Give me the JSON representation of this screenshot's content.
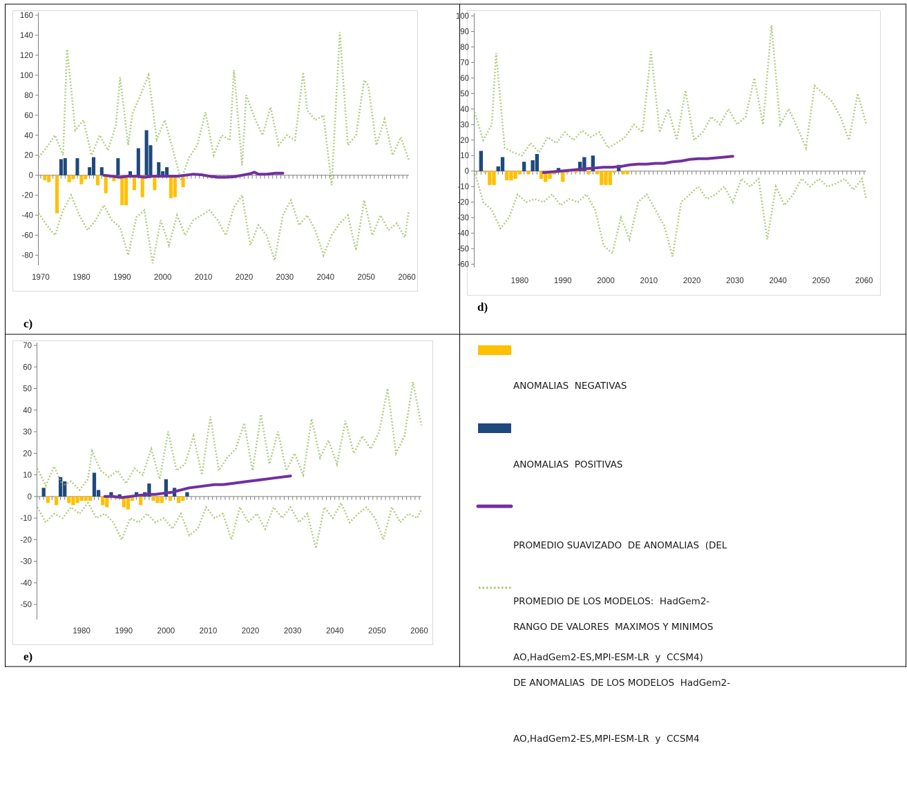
{
  "colors": {
    "negative": "#ffc000",
    "positive": "#1f497d",
    "smooth": "#7030a0",
    "range": "#9bbb59",
    "border": "#000000"
  },
  "legend": {
    "negative": [
      "ANOMALIAS  NEGATIVAS"
    ],
    "positive": [
      "ANOMALIAS  POSITIVAS"
    ],
    "smooth": [
      "PROMEDIO SUAVIZADO  DE ANOMALIAS  (DEL",
      "PROMEDIO DE LOS MODELOS:  HadGem2-",
      "AO,HadGem2-ES,MPI-ESM-LR  y  CCSM4)"
    ],
    "range": [
      "RANGO DE VALORES  MAXIMOS Y MINIMOS",
      "DE ANOMALIAS  DE LOS MODELOS  HadGem2-",
      "AO,HadGem2-ES,MPI-ESM-LR  y  CCSM4"
    ]
  },
  "chart_data": [
    {
      "id": "c",
      "panel_label": "c)",
      "type": "bar",
      "x_ticks": [
        "1970",
        "1980",
        "1990",
        "2000",
        "2010",
        "2020",
        "2030",
        "2040",
        "2050",
        "2060"
      ],
      "x_tick_values": [
        1970,
        1980,
        1990,
        2000,
        2010,
        2020,
        2030,
        2040,
        2050,
        2060
      ],
      "xlim": [
        1970,
        2061
      ],
      "y_ticks": [
        "-80",
        "-60",
        "-40",
        "-20",
        "0",
        "20",
        "40",
        "60",
        "80",
        "100",
        "120",
        "140",
        "160"
      ],
      "ylim": [
        -90,
        160
      ],
      "bars": {
        "years": [
          1971,
          1972,
          1973,
          1974,
          1975,
          1976,
          1977,
          1978,
          1979,
          1980,
          1981,
          1982,
          1983,
          1984,
          1985,
          1986,
          1987,
          1988,
          1989,
          1990,
          1991,
          1992,
          1993,
          1994,
          1995,
          1996,
          1997,
          1998,
          1999,
          2000,
          2001,
          2002,
          2003,
          2004,
          2005
        ],
        "values": [
          -5,
          -7,
          0,
          -38,
          16,
          17,
          -7,
          -4,
          17,
          -9,
          -4,
          8,
          18,
          -10,
          8,
          -18,
          0,
          -6,
          17,
          -30,
          -30,
          4,
          -15,
          27,
          -22,
          45,
          30,
          -15,
          13,
          4,
          8,
          -23,
          -22,
          -1,
          -12
        ]
      },
      "smooth": {
        "years": [
          1986,
          1988,
          1990,
          1992,
          1994,
          1996,
          1998,
          2000,
          2002,
          2004,
          2006,
          2008,
          2010,
          2012,
          2014,
          2016,
          2018,
          2020,
          2022,
          2023,
          2024,
          2026,
          2028,
          2030
        ],
        "values": [
          0,
          -1,
          -2,
          -1,
          -1,
          -2,
          -1,
          -1,
          -1,
          -1,
          0,
          1,
          0.5,
          -1,
          -2,
          -2,
          -1.5,
          0,
          1.5,
          3,
          1,
          1,
          2,
          2
        ]
      },
      "range_max": {
        "years": [
          1970,
          1972,
          1974,
          1976,
          1977,
          1979,
          1981,
          1983,
          1985,
          1987,
          1989,
          1990,
          1992,
          1993,
          1995,
          1997,
          1999,
          2001,
          2003,
          2005,
          2007,
          2009,
          2011,
          2013,
          2015,
          2017,
          2018,
          2020,
          2021,
          2023,
          2025,
          2027,
          2029,
          2031,
          2033,
          2035,
          2036,
          2038,
          2040,
          2042,
          2044,
          2046,
          2048,
          2050,
          2051,
          2053,
          2055,
          2057,
          2059,
          2061
        ],
        "values": [
          18,
          28,
          40,
          20,
          126,
          45,
          55,
          20,
          40,
          25,
          50,
          98,
          30,
          61,
          80,
          100,
          36,
          55,
          25,
          -5,
          18,
          30,
          63,
          20,
          40,
          35,
          105,
          10,
          80,
          58,
          40,
          68,
          30,
          40,
          35,
          103,
          65,
          55,
          60,
          -10,
          143,
          30,
          40,
          95,
          90,
          30,
          56,
          20,
          38,
          15
        ]
      },
      "range_min": {
        "years": [
          1970,
          1972,
          1974,
          1976,
          1978,
          1980,
          1982,
          1984,
          1986,
          1988,
          1990,
          1992,
          1994,
          1996,
          1998,
          2000,
          2002,
          2004,
          2006,
          2008,
          2010,
          2012,
          2014,
          2016,
          2018,
          2020,
          2022,
          2024,
          2026,
          2028,
          2030,
          2032,
          2034,
          2036,
          2038,
          2040,
          2042,
          2044,
          2046,
          2048,
          2050,
          2052,
          2054,
          2056,
          2058,
          2060,
          2061
        ],
        "values": [
          -38,
          -50,
          -60,
          -35,
          -20,
          -40,
          -55,
          -45,
          -30,
          -45,
          -52,
          -80,
          -42,
          -35,
          -88,
          -45,
          -70,
          -40,
          -60,
          -45,
          -40,
          -35,
          -45,
          -60,
          -32,
          -20,
          -70,
          -50,
          -60,
          -85,
          -40,
          -25,
          -50,
          -40,
          -55,
          -80,
          -60,
          -48,
          -40,
          -75,
          -25,
          -60,
          -40,
          -55,
          -48,
          -62,
          -35
        ]
      }
    },
    {
      "id": "d",
      "panel_label": "d)",
      "type": "bar",
      "x_ticks": [
        "1980",
        "1990",
        "2000",
        "2010",
        "2020",
        "2030",
        "2040",
        "2050",
        "2060"
      ],
      "x_tick_values": [
        1980,
        1990,
        2000,
        2010,
        2020,
        2030,
        2040,
        2050,
        2060
      ],
      "xlim": [
        1970,
        2061
      ],
      "y_ticks": [
        "-60",
        "-50",
        "-40",
        "-30",
        "-20",
        "-10",
        "0",
        "10",
        "20",
        "30",
        "40",
        "50",
        "60",
        "70",
        "80",
        "90",
        "100"
      ],
      "ylim": [
        -62,
        100
      ],
      "bars": {
        "years": [
          1971,
          1972,
          1973,
          1974,
          1975,
          1976,
          1977,
          1978,
          1979,
          1980,
          1981,
          1982,
          1983,
          1984,
          1985,
          1986,
          1987,
          1988,
          1989,
          1990,
          1991,
          1992,
          1993,
          1994,
          1995,
          1996,
          1997,
          1998,
          1999,
          2000,
          2001,
          2002,
          2003,
          2004,
          2005
        ],
        "values": [
          13,
          -1,
          -9,
          -9,
          3,
          9,
          -6,
          -6,
          -5,
          -2,
          6,
          -2,
          7,
          11,
          -5,
          -7,
          -5,
          -2,
          2,
          -7,
          -1,
          0,
          -1,
          6,
          9,
          -2,
          10,
          -2,
          -9,
          -9,
          -9,
          -1,
          4,
          -2,
          -2
        ]
      },
      "smooth": {
        "years": [
          1986,
          1988,
          1990,
          1992,
          1994,
          1996,
          1998,
          2000,
          2002,
          2004,
          2006,
          2008,
          2010,
          2012,
          2014,
          2016,
          2018,
          2020,
          2022,
          2024,
          2026,
          2028,
          2030
        ],
        "values": [
          -1,
          -0.5,
          0,
          0.5,
          1,
          1.5,
          2,
          2.5,
          2.5,
          3,
          4,
          4.5,
          4.5,
          5,
          5,
          6,
          6.5,
          7.5,
          8,
          8,
          8.5,
          9,
          9.5
        ]
      },
      "range_max": {
        "years": [
          1970,
          1972,
          1974,
          1975,
          1977,
          1979,
          1981,
          1983,
          1985,
          1987,
          1989,
          1991,
          1993,
          1995,
          1997,
          1999,
          2001,
          2003,
          2005,
          2007,
          2009,
          2011,
          2013,
          2015,
          2017,
          2019,
          2021,
          2023,
          2025,
          2027,
          2029,
          2031,
          2033,
          2035,
          2037,
          2039,
          2041,
          2043,
          2045,
          2047,
          2049,
          2051,
          2053,
          2055,
          2057,
          2059,
          2061
        ],
        "values": [
          38,
          20,
          30,
          76,
          15,
          12,
          10,
          18,
          12,
          22,
          18,
          25,
          20,
          26,
          22,
          25,
          15,
          18,
          22,
          30,
          25,
          77,
          25,
          40,
          20,
          52,
          20,
          25,
          35,
          30,
          40,
          30,
          35,
          60,
          30,
          94,
          30,
          40,
          28,
          15,
          55,
          50,
          45,
          35,
          20,
          50,
          30
        ]
      },
      "range_min": {
        "years": [
          1970,
          1972,
          1974,
          1976,
          1978,
          1980,
          1982,
          1984,
          1986,
          1988,
          1990,
          1992,
          1994,
          1996,
          1998,
          2000,
          2002,
          2004,
          2006,
          2008,
          2010,
          2012,
          2014,
          2016,
          2018,
          2020,
          2022,
          2024,
          2026,
          2028,
          2030,
          2032,
          2034,
          2036,
          2038,
          2040,
          2042,
          2044,
          2046,
          2048,
          2050,
          2052,
          2054,
          2056,
          2058,
          2060,
          2061
        ],
        "values": [
          0,
          -20,
          -25,
          -37,
          -30,
          -15,
          -20,
          -18,
          -20,
          -15,
          -22,
          -18,
          -20,
          -15,
          -25,
          -48,
          -53,
          -30,
          -44,
          -20,
          -15,
          -25,
          -35,
          -55,
          -20,
          -15,
          -10,
          -18,
          -15,
          -10,
          -20,
          -5,
          -10,
          -5,
          -44,
          -10,
          -22,
          -15,
          -5,
          -10,
          -5,
          -10,
          -8,
          -5,
          -12,
          -5,
          -18
        ]
      }
    },
    {
      "id": "e",
      "panel_label": "e)",
      "type": "bar",
      "x_ticks": [
        "1980",
        "1990",
        "2000",
        "2010",
        "2020",
        "2030",
        "2040",
        "2050",
        "2060"
      ],
      "x_tick_values": [
        1980,
        1990,
        2000,
        2010,
        2020,
        2030,
        2040,
        2050,
        2060
      ],
      "xlim": [
        1970,
        2061
      ],
      "y_ticks": [
        "-50",
        "-40",
        "-30",
        "-20",
        "-10",
        "0",
        "10",
        "20",
        "30",
        "40",
        "50",
        "60",
        "70"
      ],
      "ylim": [
        -57,
        70
      ],
      "bars": {
        "years": [
          1971,
          1972,
          1973,
          1974,
          1975,
          1976,
          1977,
          1978,
          1979,
          1980,
          1981,
          1982,
          1983,
          1984,
          1985,
          1986,
          1987,
          1988,
          1989,
          1990,
          1991,
          1992,
          1993,
          1994,
          1995,
          1996,
          1997,
          1998,
          1999,
          2000,
          2001,
          2002,
          2003,
          2004,
          2005
        ],
        "values": [
          4,
          -3,
          0,
          -4,
          9,
          7,
          -3,
          -4,
          -3,
          -2,
          -2,
          -2,
          11,
          3,
          -4,
          -5,
          2,
          -1,
          1,
          -5,
          -6,
          -2,
          2,
          -4,
          2,
          6,
          -2,
          -3,
          -3,
          8,
          -2,
          4,
          -3,
          -2,
          2
        ]
      },
      "smooth": {
        "years": [
          1986,
          1988,
          1990,
          1992,
          1994,
          1996,
          1998,
          2000,
          2002,
          2004,
          2006,
          2008,
          2010,
          2012,
          2014,
          2016,
          2018,
          2020,
          2022,
          2024,
          2026,
          2028,
          2030
        ],
        "values": [
          0,
          0,
          -0.5,
          0,
          0.5,
          1,
          1,
          1.5,
          2,
          3,
          4,
          4.5,
          5,
          5.5,
          5.5,
          6,
          6.5,
          7,
          7.5,
          8,
          8.5,
          9,
          9.5
        ]
      },
      "range_max": {
        "years": [
          1970,
          1972,
          1974,
          1976,
          1978,
          1980,
          1982,
          1983,
          1985,
          1987,
          1989,
          1991,
          1993,
          1995,
          1997,
          1999,
          2001,
          2003,
          2005,
          2007,
          2009,
          2011,
          2013,
          2015,
          2017,
          2019,
          2021,
          2023,
          2025,
          2027,
          2029,
          2031,
          2033,
          2035,
          2037,
          2039,
          2041,
          2043,
          2045,
          2047,
          2049,
          2051,
          2053,
          2055,
          2057,
          2059,
          2061
        ],
        "values": [
          13,
          5,
          14,
          5,
          7,
          3,
          8,
          21,
          12,
          9,
          12,
          6,
          13,
          10,
          22,
          8,
          30,
          12,
          15,
          28,
          10,
          37,
          12,
          18,
          22,
          34,
          12,
          38,
          15,
          30,
          12,
          20,
          10,
          36,
          18,
          26,
          15,
          35,
          20,
          28,
          22,
          30,
          50,
          20,
          28,
          53,
          33
        ]
      },
      "range_min": {
        "years": [
          1970,
          1972,
          1974,
          1976,
          1978,
          1980,
          1982,
          1984,
          1986,
          1988,
          1990,
          1992,
          1994,
          1996,
          1998,
          2000,
          2002,
          2004,
          2006,
          2008,
          2010,
          2012,
          2014,
          2016,
          2018,
          2020,
          2022,
          2024,
          2026,
          2028,
          2030,
          2032,
          2034,
          2036,
          2038,
          2040,
          2042,
          2044,
          2046,
          2048,
          2050,
          2052,
          2054,
          2056,
          2058,
          2060,
          2061
        ],
        "values": [
          -5,
          -12,
          -8,
          -10,
          -5,
          -8,
          -3,
          -10,
          -8,
          -12,
          -20,
          -10,
          -12,
          -8,
          -12,
          -10,
          -15,
          -8,
          -18,
          -15,
          -5,
          -10,
          -8,
          -20,
          -5,
          -12,
          -8,
          -15,
          -5,
          -10,
          -5,
          -12,
          -8,
          -24,
          -5,
          -10,
          -3,
          -12,
          -8,
          -5,
          -10,
          -20,
          -5,
          -12,
          -8,
          -10,
          -6
        ]
      }
    }
  ]
}
